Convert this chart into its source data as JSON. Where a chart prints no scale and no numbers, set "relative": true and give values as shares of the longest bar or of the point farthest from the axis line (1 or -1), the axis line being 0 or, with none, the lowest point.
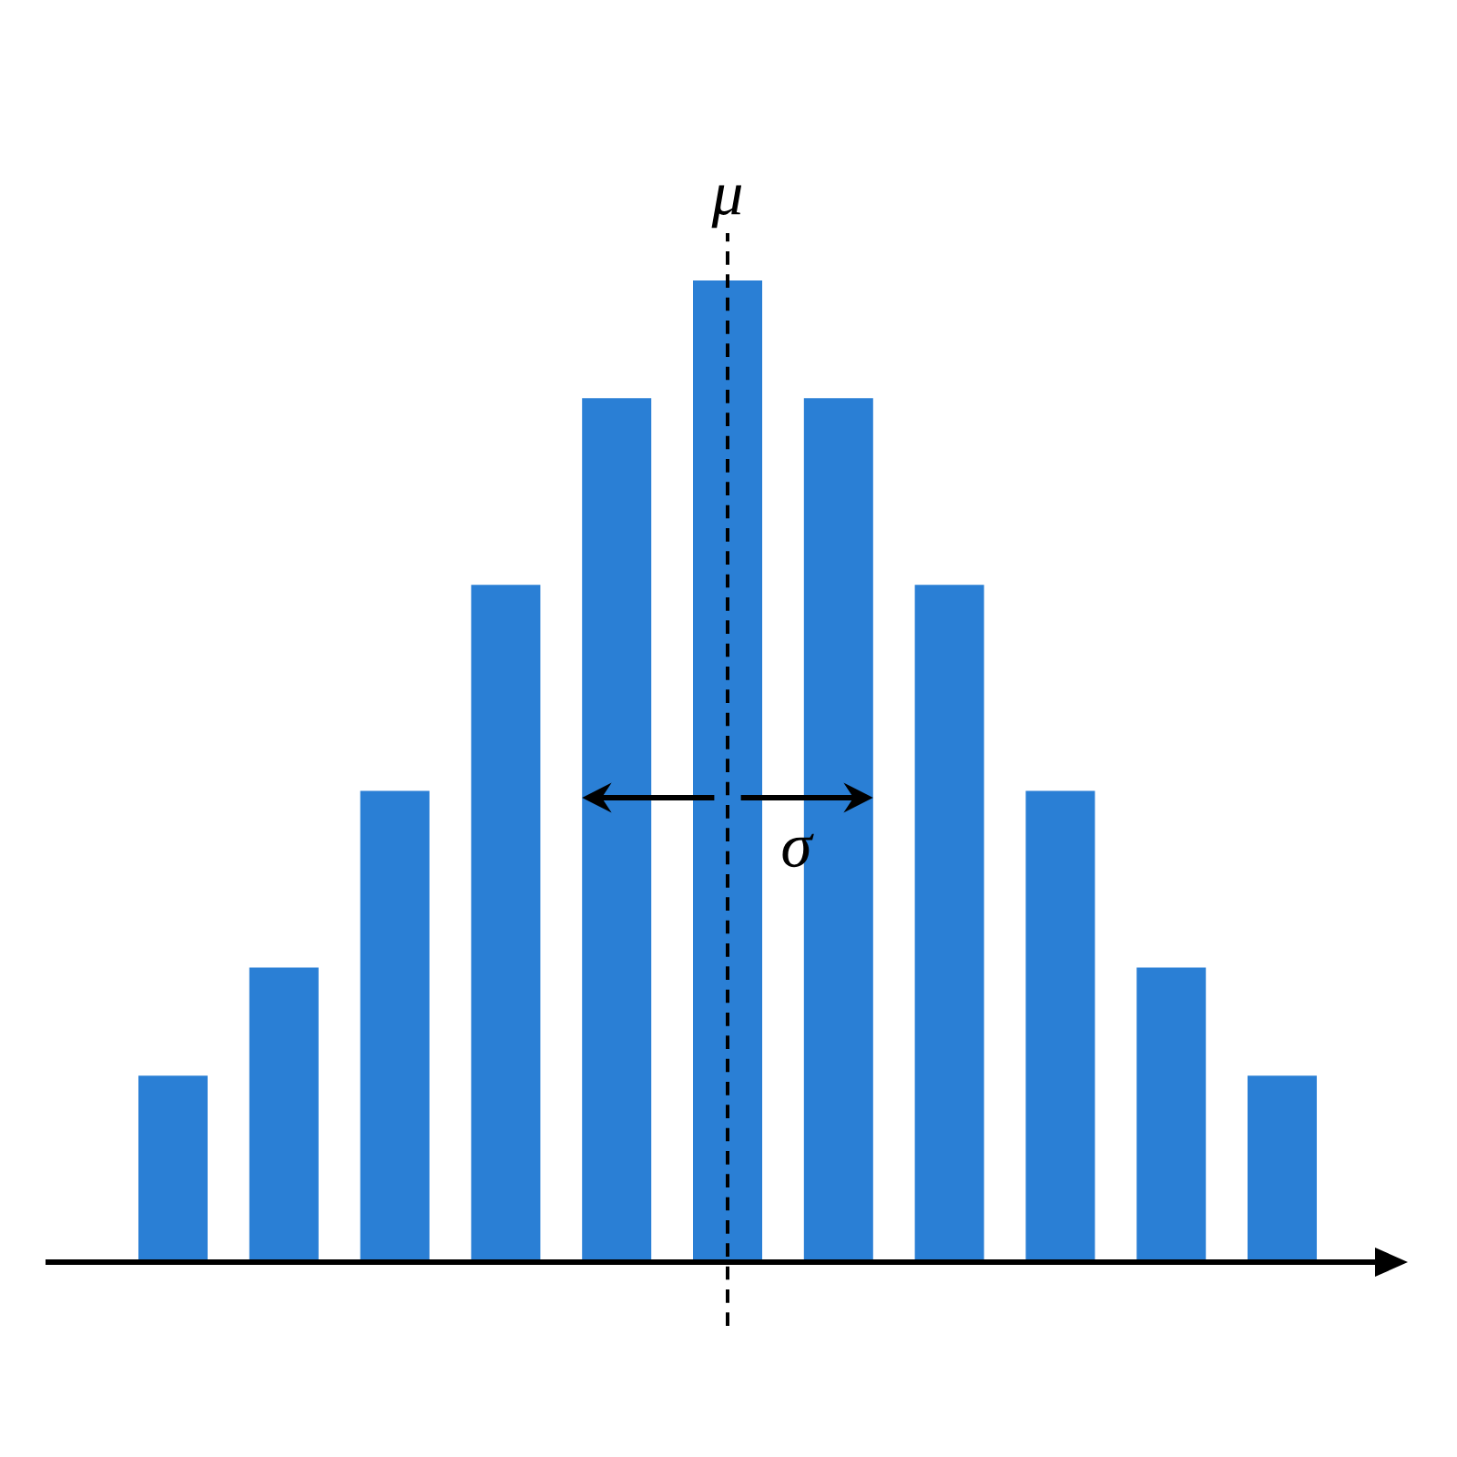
{
  "chart_data": {
    "type": "bar",
    "relative": true,
    "categories": [
      null,
      null,
      null,
      null,
      null,
      null,
      null,
      null,
      null,
      null,
      null
    ],
    "values": [
      0.19,
      0.3,
      0.48,
      0.69,
      0.88,
      1,
      0.88,
      0.69,
      0.48,
      0.3,
      0.19
    ],
    "color": "#2a7fd5",
    "annotations": [
      "μ",
      "σ"
    ]
  }
}
